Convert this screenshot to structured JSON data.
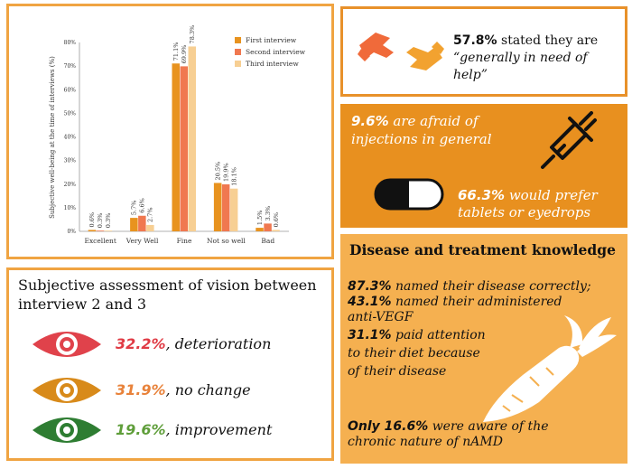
{
  "chart_data": {
    "type": "bar",
    "ylabel": "Subjective well-being at the time of interviews (%)",
    "xlabel": "",
    "ylim": [
      0,
      80
    ],
    "yticks": [
      "0%",
      "10%",
      "20%",
      "30%",
      "40%",
      "50%",
      "60%",
      "70%",
      "80%"
    ],
    "categories": [
      "Excellent",
      "Very Well",
      "Fine",
      "Not so well",
      "Bad"
    ],
    "series": [
      {
        "name": "First interview",
        "color": "#e8931f",
        "values": [
          0.6,
          5.7,
          71.1,
          20.5,
          1.5
        ],
        "labels": [
          "0.6%",
          "5.7%",
          "71.1%",
          "20.5%",
          "1.5%"
        ]
      },
      {
        "name": "Second interview",
        "color": "#f07850",
        "values": [
          0.3,
          6.6,
          69.9,
          19.9,
          3.3
        ],
        "labels": [
          "0.3%",
          "6.6%",
          "69.9%",
          "19.9%",
          "3.3%"
        ]
      },
      {
        "name": "Third interview",
        "color": "#f7cf93",
        "values": [
          0.3,
          2.7,
          78.3,
          18.1,
          0.6
        ],
        "labels": [
          "0.3%",
          "2.7%",
          "78.3%",
          "18.1%",
          "0.6%"
        ]
      }
    ],
    "legend": "top-right",
    "grid": false
  },
  "help": {
    "percent": "57.8%",
    "text_a": " stated they are",
    "text_b": "“generally in need of help”",
    "icon": "helping-hands-icon"
  },
  "injections": {
    "afraid_percent": "9.6%",
    "afraid_a": " are afraid of",
    "afraid_b": "injections in general",
    "prefer_percent": "66.3%",
    "prefer_a": " would prefer",
    "prefer_b": "tablets or eyedrops",
    "icons": [
      "syringe-icon",
      "pill-capsule-icon"
    ]
  },
  "knowledge": {
    "title": "Disease and treatment knowledge",
    "l1_pct": "87.3%",
    "l1_text": " named their disease correctly;",
    "l2_pct": "43.1%",
    "l2_text": " named their administered",
    "l3_text": "anti-VEGF",
    "l4_pct": "31.1%",
    "l4_text": " paid attention",
    "l5_text": "to their diet because",
    "l6_text": "of their disease",
    "l7_bold": "Only 16.6%",
    "l7_text": " were aware of the",
    "l8_text": "chronic nature of nAMD",
    "icon": "carrot-icon"
  },
  "vision": {
    "title": "Subjective assessment of vision between interview 2 and 3",
    "rows": [
      {
        "percent": "32.2%",
        "label": ", deterioration",
        "color": "#e0424b"
      },
      {
        "percent": "31.9%",
        "label": ", no change",
        "color": "#d88a1a"
      },
      {
        "percent": "19.6%",
        "label": ", improvement",
        "color": "#2e7d32"
      }
    ],
    "pct_colors": [
      "#e03a44",
      "#e8823a",
      "#5f9e3a"
    ],
    "icon": "eye-icon"
  }
}
